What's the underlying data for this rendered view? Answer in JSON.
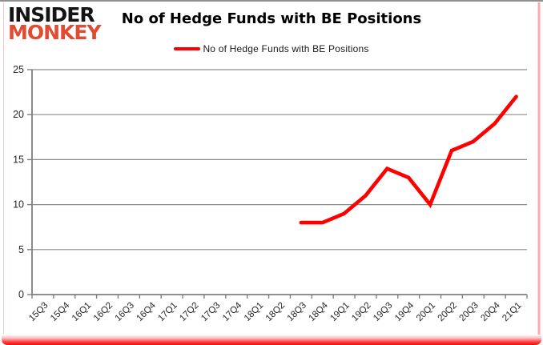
{
  "brand": {
    "line1": "INSIDER",
    "line2": "MONKEY",
    "accent": "#e14b32",
    "ink": "#141414"
  },
  "header": {
    "title": "No of Hedge Funds with BE Positions"
  },
  "legend": {
    "label": "No of Hedge Funds with BE Positions",
    "color": "#ff0000"
  },
  "chart_data": {
    "type": "line",
    "title": "No of Hedge Funds with BE Positions",
    "categories": [
      "15Q3",
      "15Q4",
      "16Q1",
      "16Q2",
      "16Q3",
      "16Q4",
      "17Q1",
      "17Q2",
      "17Q3",
      "17Q4",
      "18Q1",
      "18Q2",
      "18Q3",
      "18Q4",
      "19Q1",
      "19Q2",
      "19Q3",
      "19Q4",
      "20Q1",
      "20Q2",
      "20Q3",
      "20Q4",
      "21Q1"
    ],
    "series": [
      {
        "name": "No of Hedge Funds with BE Positions",
        "color": "#ff0000",
        "values": [
          null,
          null,
          null,
          null,
          null,
          null,
          null,
          null,
          null,
          null,
          null,
          null,
          8,
          8,
          9,
          11,
          14,
          13,
          10,
          16,
          17,
          19,
          22
        ]
      }
    ],
    "ylim": [
      0,
      25
    ],
    "yticks": [
      0,
      5,
      10,
      15,
      20,
      25
    ],
    "xlabel": "",
    "ylabel": "",
    "grid": true,
    "legend_position": "top-center",
    "gridline_color": "#8c8c8c",
    "axis_color": "#7f7f7f",
    "tick_label_color": "#262626"
  }
}
